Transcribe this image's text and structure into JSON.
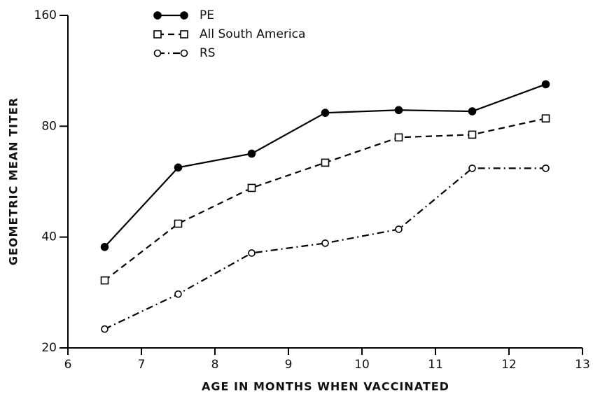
{
  "chart_data": {
    "type": "line",
    "xlabel": "AGE IN MONTHS WHEN VACCINATED",
    "ylabel": "GEOMETRIC MEAN TITER",
    "x": [
      6.5,
      7.5,
      8.5,
      9.5,
      10.5,
      11.5,
      12.5
    ],
    "series": [
      {
        "name": "PE",
        "color": "#000000",
        "linestyle": "solid",
        "marker": "circle",
        "marker_fill": "filled",
        "values": [
          37.6,
          61.8,
          67.4,
          87,
          88.5,
          87.8,
          104
        ]
      },
      {
        "name": "All South America",
        "color": "#000000",
        "linestyle": "dashed",
        "marker": "square",
        "marker_fill": "open",
        "values": [
          30.5,
          43.5,
          54.4,
          63.7,
          74.6,
          75.9,
          84
        ]
      },
      {
        "name": "RS",
        "color": "#000000",
        "linestyle": "dashdot",
        "marker": "circle",
        "marker_fill": "open",
        "values": [
          22.5,
          28,
          36.2,
          38.5,
          42,
          61.5,
          61.5
        ]
      }
    ],
    "xlim": [
      6,
      13
    ],
    "xticks": [
      6,
      7,
      8,
      9,
      10,
      11,
      12,
      13
    ],
    "ylim": [
      20,
      160
    ],
    "yticks": [
      20,
      40,
      80,
      160
    ],
    "yscale": "log",
    "grid": false,
    "legend": "upper left"
  }
}
